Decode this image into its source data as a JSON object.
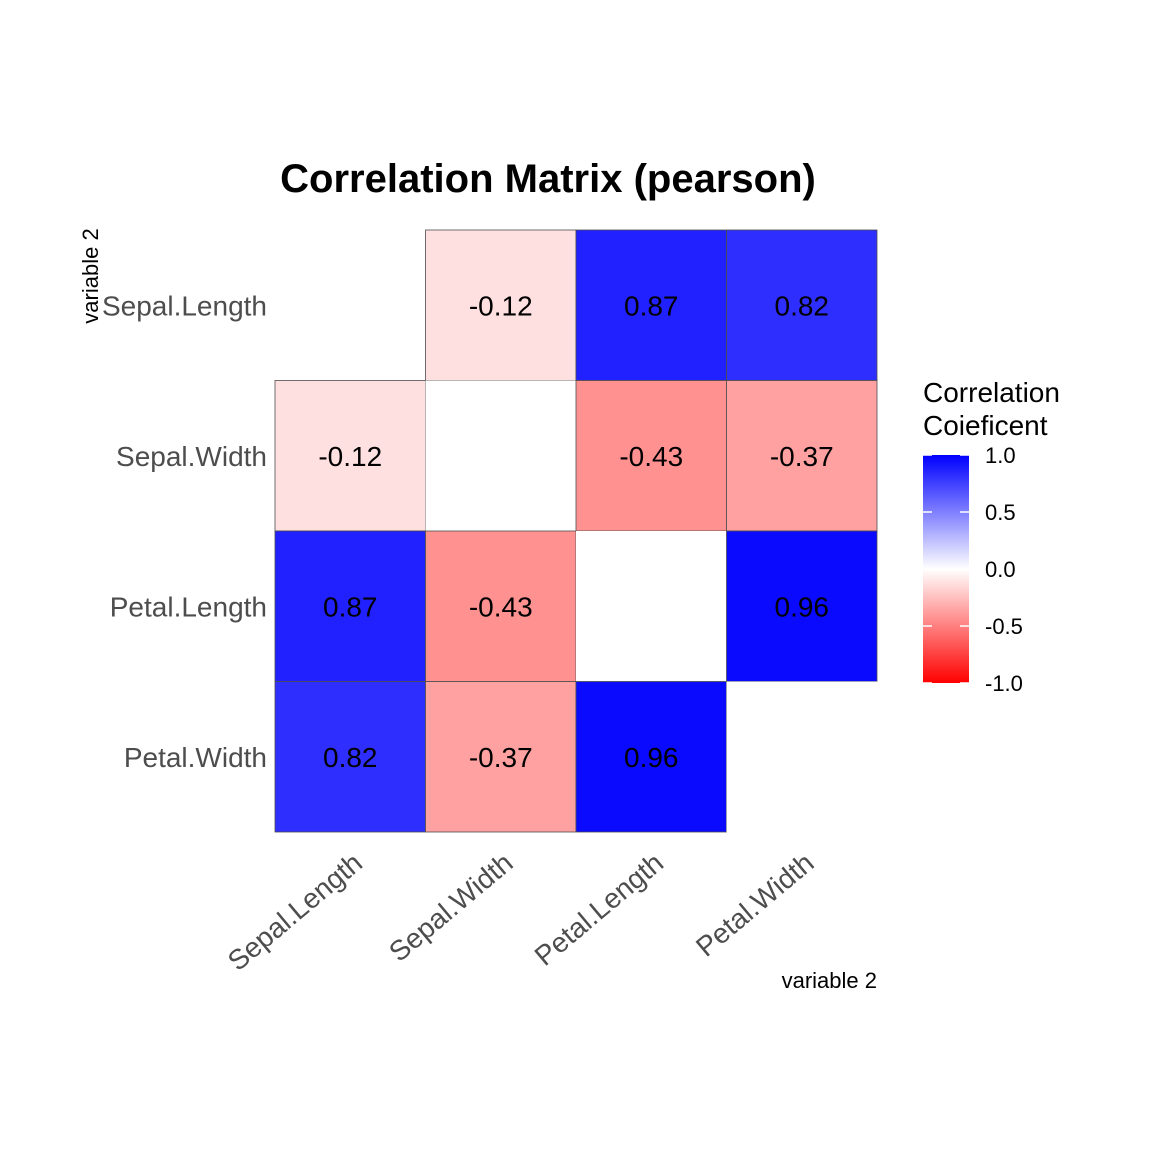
{
  "chart_data": {
    "type": "heatmap",
    "title": "Correlation Matrix (pearson)",
    "xlabel": "variable 2",
    "ylabel": "variable 2",
    "variables": [
      "Sepal.Length",
      "Sepal.Width",
      "Petal.Length",
      "Petal.Width"
    ],
    "matrix": [
      [
        null,
        -0.12,
        0.87,
        0.82
      ],
      [
        -0.12,
        null,
        -0.43,
        -0.37
      ],
      [
        0.87,
        -0.43,
        null,
        0.96
      ],
      [
        0.82,
        -0.37,
        0.96,
        null
      ]
    ],
    "color_scale": {
      "low": "#ff0000",
      "mid": "#ffffff",
      "high": "#0000ff",
      "limits": [
        -1,
        1
      ]
    },
    "legend": {
      "title_lines": [
        "Correlation",
        "Coieficent"
      ],
      "ticks": [
        1.0,
        0.5,
        0.0,
        -0.5,
        -1.0
      ],
      "tick_labels": [
        "1.0",
        "0.5",
        "0.0",
        "-0.5",
        "-1.0"
      ],
      "placement": "right"
    },
    "grid": false
  }
}
